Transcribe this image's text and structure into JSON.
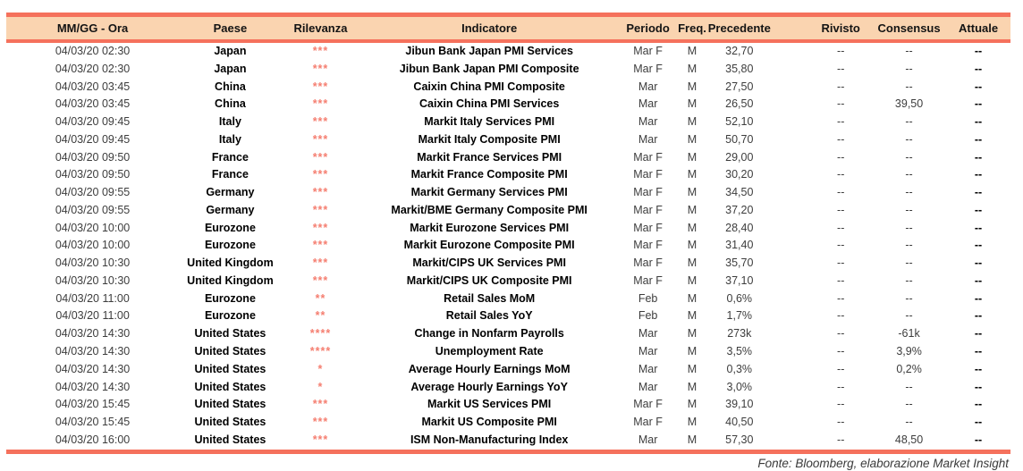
{
  "colors": {
    "accent_line": "#F5715C",
    "header_bg": "#FAD4B0",
    "stars": "#F57E70"
  },
  "table": {
    "headers": [
      "MM/GG - Ora",
      "Paese",
      "Rilevanza",
      "Indicatore",
      "Periodo",
      "Freq.",
      "Precedente",
      "Rivisto",
      "Consensus",
      "Attuale"
    ],
    "rows": [
      [
        "04/03/20 02:30",
        "Japan",
        "***",
        "Jibun Bank Japan PMI Services",
        "Mar F",
        "M",
        "32,70",
        "--",
        "--",
        "--"
      ],
      [
        "04/03/20 02:30",
        "Japan",
        "***",
        "Jibun Bank Japan PMI Composite",
        "Mar F",
        "M",
        "35,80",
        "--",
        "--",
        "--"
      ],
      [
        "04/03/20 03:45",
        "China",
        "***",
        "Caixin China PMI Composite",
        "Mar",
        "M",
        "27,50",
        "--",
        "--",
        "--"
      ],
      [
        "04/03/20 03:45",
        "China",
        "***",
        "Caixin China PMI Services",
        "Mar",
        "M",
        "26,50",
        "--",
        "39,50",
        "--"
      ],
      [
        "04/03/20 09:45",
        "Italy",
        "***",
        "Markit Italy Services PMI",
        "Mar",
        "M",
        "52,10",
        "--",
        "--",
        "--"
      ],
      [
        "04/03/20 09:45",
        "Italy",
        "***",
        "Markit Italy Composite PMI",
        "Mar",
        "M",
        "50,70",
        "--",
        "--",
        "--"
      ],
      [
        "04/03/20 09:50",
        "France",
        "***",
        "Markit France Services PMI",
        "Mar F",
        "M",
        "29,00",
        "--",
        "--",
        "--"
      ],
      [
        "04/03/20 09:50",
        "France",
        "***",
        "Markit France Composite PMI",
        "Mar F",
        "M",
        "30,20",
        "--",
        "--",
        "--"
      ],
      [
        "04/03/20 09:55",
        "Germany",
        "***",
        "Markit Germany Services PMI",
        "Mar F",
        "M",
        "34,50",
        "--",
        "--",
        "--"
      ],
      [
        "04/03/20 09:55",
        "Germany",
        "***",
        "Markit/BME Germany Composite PMI",
        "Mar F",
        "M",
        "37,20",
        "--",
        "--",
        "--"
      ],
      [
        "04/03/20 10:00",
        "Eurozone",
        "***",
        "Markit Eurozone Services PMI",
        "Mar F",
        "M",
        "28,40",
        "--",
        "--",
        "--"
      ],
      [
        "04/03/20 10:00",
        "Eurozone",
        "***",
        "Markit Eurozone Composite PMI",
        "Mar F",
        "M",
        "31,40",
        "--",
        "--",
        "--"
      ],
      [
        "04/03/20 10:30",
        "United Kingdom",
        "***",
        "Markit/CIPS UK Services PMI",
        "Mar F",
        "M",
        "35,70",
        "--",
        "--",
        "--"
      ],
      [
        "04/03/20 10:30",
        "United Kingdom",
        "***",
        "Markit/CIPS UK Composite PMI",
        "Mar F",
        "M",
        "37,10",
        "--",
        "--",
        "--"
      ],
      [
        "04/03/20 11:00",
        "Eurozone",
        "**",
        "Retail Sales MoM",
        "Feb",
        "M",
        "0,6%",
        "--",
        "--",
        "--"
      ],
      [
        "04/03/20 11:00",
        "Eurozone",
        "**",
        "Retail Sales YoY",
        "Feb",
        "M",
        "1,7%",
        "--",
        "--",
        "--"
      ],
      [
        "04/03/20 14:30",
        "United States",
        "****",
        "Change in Nonfarm Payrolls",
        "Mar",
        "M",
        "273k",
        "--",
        "-61k",
        "--"
      ],
      [
        "04/03/20 14:30",
        "United States",
        "****",
        "Unemployment Rate",
        "Mar",
        "M",
        "3,5%",
        "--",
        "3,9%",
        "--"
      ],
      [
        "04/03/20 14:30",
        "United States",
        "*",
        "Average Hourly Earnings MoM",
        "Mar",
        "M",
        "0,3%",
        "--",
        "0,2%",
        "--"
      ],
      [
        "04/03/20 14:30",
        "United States",
        "*",
        "Average Hourly Earnings YoY",
        "Mar",
        "M",
        "3,0%",
        "--",
        "--",
        "--"
      ],
      [
        "04/03/20 15:45",
        "United States",
        "***",
        "Markit US Services PMI",
        "Mar F",
        "M",
        "39,10",
        "--",
        "--",
        "--"
      ],
      [
        "04/03/20 15:45",
        "United States",
        "***",
        "Markit US Composite PMI",
        "Mar F",
        "M",
        "40,50",
        "--",
        "--",
        "--"
      ],
      [
        "04/03/20 16:00",
        "United States",
        "***",
        "ISM Non-Manufacturing Index",
        "Mar",
        "M",
        "57,30",
        "--",
        "48,50",
        "--"
      ]
    ]
  },
  "footer": {
    "source_note": "Fonte: Bloomberg, elaborazione Market Insight"
  }
}
